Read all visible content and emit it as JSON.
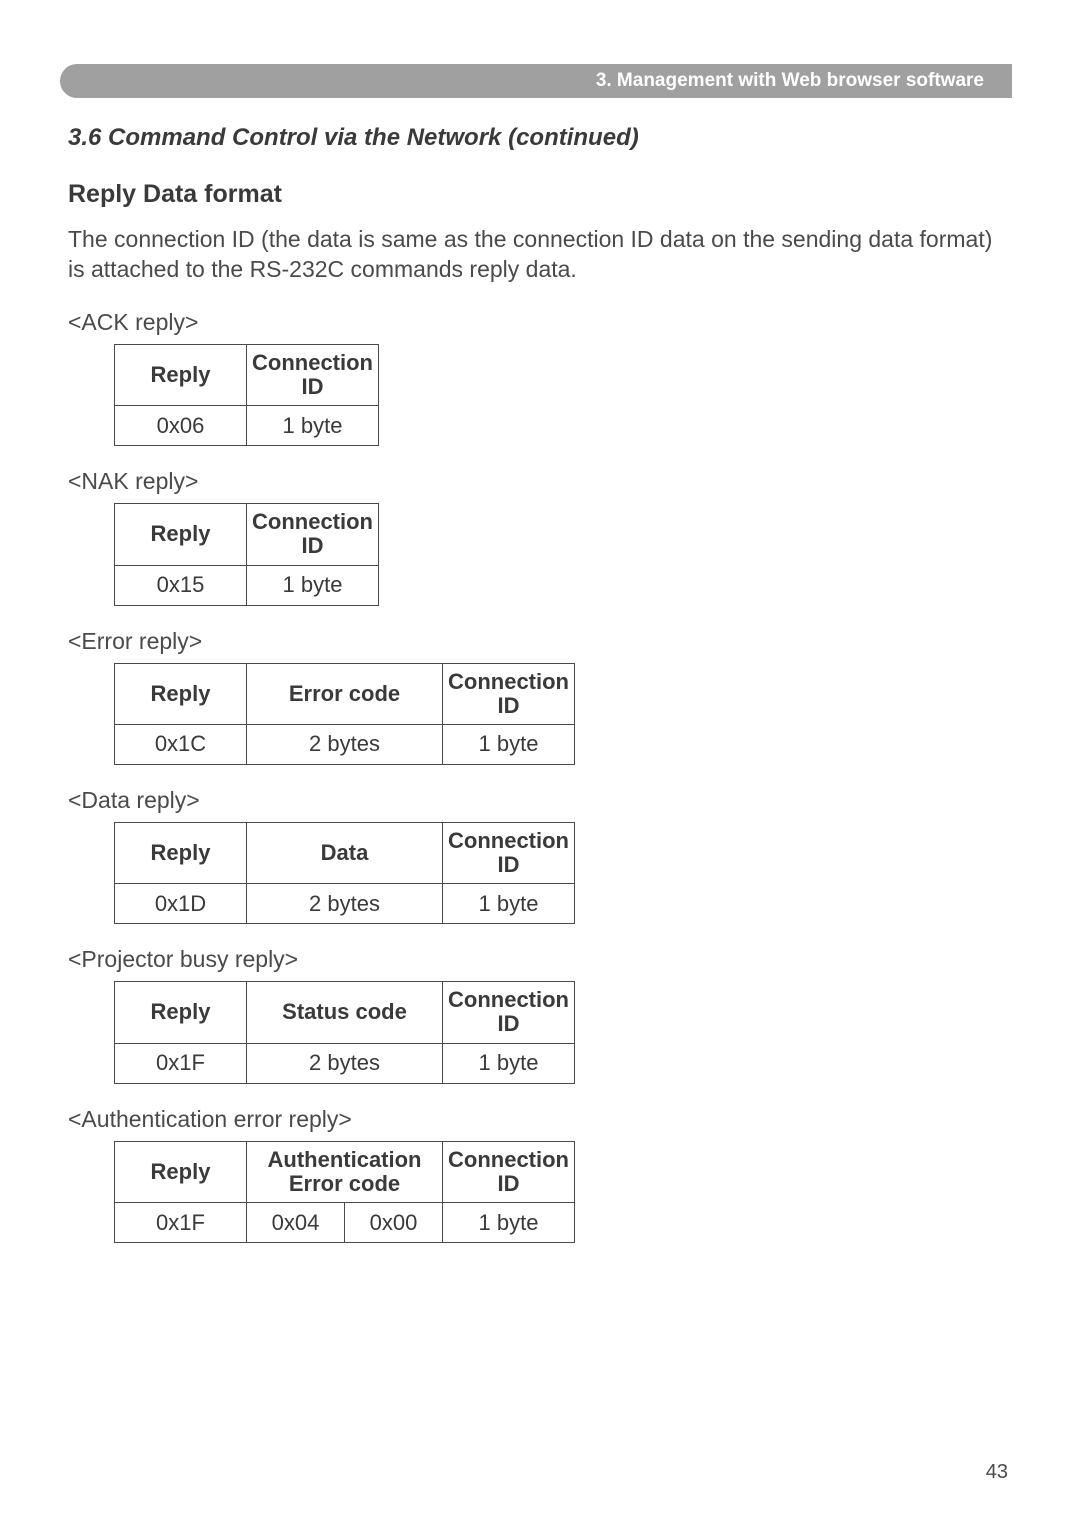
{
  "header": {
    "title": "3. Management with Web browser software"
  },
  "section_title": "3.6 Command Control via the Network (continued)",
  "subheading": "Reply Data format",
  "intro": "The connection ID (the data is same as the connection ID data on the sending data format) is attached to the RS-232C commands reply data.",
  "labels": {
    "ack": "<ACK reply>",
    "nak": "<NAK reply>",
    "error": "<Error reply>",
    "data": "<Data reply>",
    "busy": "<Projector busy reply>",
    "auth": "<Authentication error reply>"
  },
  "cols": {
    "reply": "Reply",
    "conn": "Connection ID",
    "error": "Error code",
    "data": "Data",
    "status": "Status code",
    "auth": "Authentication Error code"
  },
  "vals": {
    "ack_reply": "0x06",
    "nak_reply": "0x15",
    "error_reply": "0x1C",
    "data_reply": "0x1D",
    "busy_reply": "0x1F",
    "auth_reply": "0x1F",
    "one_byte": "1 byte",
    "two_bytes": "2 bytes",
    "auth_b1": "0x04",
    "auth_b2": "0x00"
  },
  "page_number": "43"
}
